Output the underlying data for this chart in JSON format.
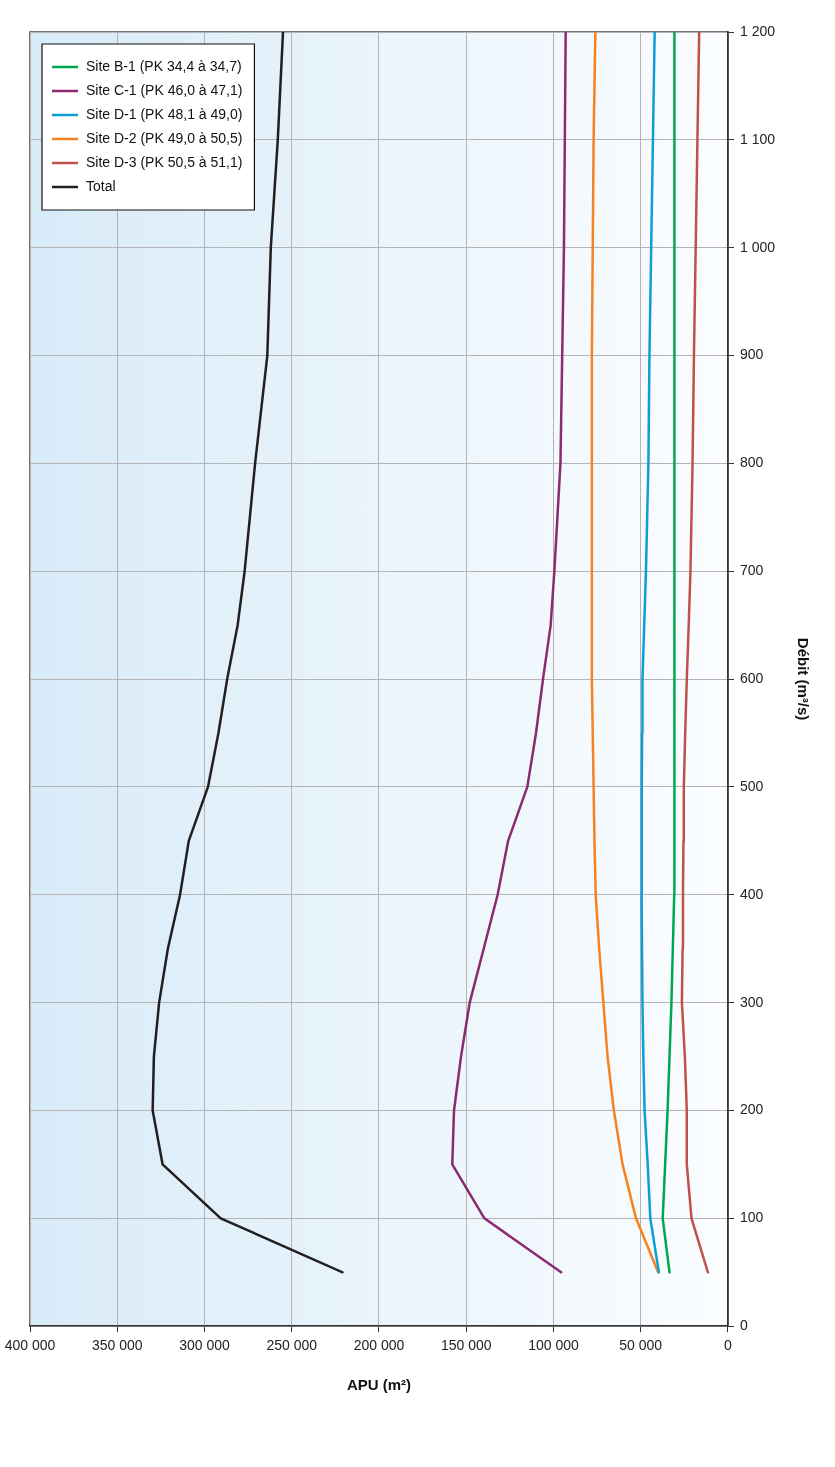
{
  "chart_data": {
    "type": "line",
    "xlabel": "APU (m²)",
    "ylabel": "Débit (m³/s)",
    "series": [
      {
        "name": "Site B-1 (PK 34,4 à 34,7)",
        "color": "#00a651",
        "x": [
          33500,
          37400,
          36000,
          34600,
          33500,
          32400,
          31600,
          30800,
          30800,
          30800,
          30800,
          30800,
          30800,
          30800,
          30700,
          30600,
          30600,
          30500,
          30500
        ],
        "values": [
          50,
          100,
          150,
          200,
          250,
          300,
          350,
          400,
          450,
          500,
          550,
          600,
          650,
          700,
          800,
          900,
          1000,
          1100,
          1200
        ]
      },
      {
        "name": "Site C-1 (PK 46,0 à 47,1)",
        "color": "#8b2a6f",
        "x": [
          95600,
          139600,
          158000,
          157000,
          153000,
          148000,
          140000,
          132000,
          126000,
          115000,
          110000,
          106000,
          101600,
          99500,
          96000,
          95000,
          94000,
          93500,
          93000
        ],
        "values": [
          50,
          100,
          150,
          200,
          250,
          300,
          350,
          400,
          450,
          500,
          550,
          600,
          650,
          700,
          800,
          900,
          1000,
          1100,
          1200
        ]
      },
      {
        "name": "Site D-1 (PK 48,1 à 49,0)",
        "color": "#0aa0d6",
        "x": [
          39600,
          44500,
          46000,
          47800,
          48500,
          49000,
          49500,
          49400,
          49200,
          49000,
          48000,
          47000,
          45600,
          45000,
          44000,
          43000,
          42000
        ],
        "values": [
          50,
          100,
          150,
          200,
          250,
          300,
          400,
          500,
          550,
          600,
          650,
          700,
          800,
          900,
          1000,
          1100,
          1200
        ]
      },
      {
        "name": "Site D-2 (PK 49,0 à 50,5)",
        "color": "#f7821e",
        "x": [
          40000,
          52700,
          60400,
          65400,
          69000,
          71400,
          73800,
          75800,
          76500,
          77000,
          77500,
          78000,
          78000,
          78000,
          78000,
          78000,
          77500,
          77000,
          76000
        ],
        "values": [
          50,
          100,
          150,
          200,
          250,
          300,
          350,
          400,
          450,
          500,
          550,
          600,
          650,
          700,
          800,
          900,
          1000,
          1100,
          1200
        ]
      },
      {
        "name": "Site D-3 (PK 50,5 à 51,1)",
        "color": "#c0504d",
        "x": [
          11500,
          20900,
          23600,
          23600,
          24700,
          26400,
          26000,
          25800,
          25500,
          25300,
          24500,
          23600,
          22500,
          21500,
          20300,
          19500,
          18500,
          17500,
          16500
        ],
        "values": [
          50,
          100,
          150,
          200,
          250,
          300,
          350,
          400,
          450,
          500,
          550,
          600,
          650,
          700,
          800,
          900,
          1000,
          1100,
          1200
        ]
      },
      {
        "name": "Total",
        "color": "#231f20",
        "x": [
          220900,
          290700,
          324000,
          329700,
          329000,
          326000,
          321000,
          314000,
          309000,
          298000,
          292000,
          287000,
          281000,
          277000,
          271000,
          264000,
          262000,
          258000,
          255000
        ],
        "values": [
          50,
          100,
          150,
          200,
          250,
          300,
          350,
          400,
          450,
          500,
          550,
          600,
          650,
          700,
          800,
          900,
          1000,
          1100,
          1200
        ]
      }
    ],
    "ylim": [
      0,
      1200
    ],
    "yticks": [
      0,
      100,
      200,
      300,
      400,
      500,
      600,
      700,
      800,
      900,
      {
        "value": 1000,
        "label": "1 000"
      },
      {
        "value": 1100,
        "label": "1 100"
      },
      {
        "value": 1200,
        "label": "1 200"
      }
    ],
    "xlim": [
      400000,
      0
    ],
    "xticks": [
      0,
      {
        "value": 50000,
        "label": "50 000"
      },
      {
        "value": 100000,
        "label": "100 000"
      },
      {
        "value": 150000,
        "label": "150 000"
      },
      {
        "value": 200000,
        "label": "200 000"
      },
      {
        "value": 250000,
        "label": "250 000"
      },
      {
        "value": 300000,
        "label": "300 000"
      },
      {
        "value": 350000,
        "label": "350 000"
      },
      {
        "value": 400000,
        "label": "400 000"
      }
    ],
    "grid": true,
    "legend": "top left",
    "marker": "none",
    "line_style": "solid"
  }
}
